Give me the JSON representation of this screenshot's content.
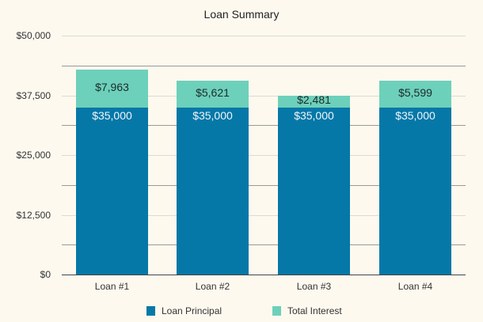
{
  "chart_data": {
    "type": "bar",
    "stacked": true,
    "title": "Loan Summary",
    "xlabel": "",
    "ylabel": "",
    "categories": [
      "Loan #1",
      "Loan #2",
      "Loan #3",
      "Loan #4"
    ],
    "series": [
      {
        "name": "Loan Principal",
        "color": "#0678a8",
        "values": [
          35000,
          35000,
          35000,
          35000
        ],
        "labels": [
          "$35,000",
          "$35,000",
          "$35,000",
          "$35,000"
        ]
      },
      {
        "name": "Total Interest",
        "color": "#6dd0bb",
        "values": [
          7963,
          5621,
          2481,
          5599
        ],
        "labels": [
          "$7,963",
          "$5,621",
          "$2,481",
          "$5,599"
        ]
      }
    ],
    "ylim": [
      0,
      50000
    ],
    "yticks": [
      "$0",
      "$12,500",
      "$25,000",
      "$37,500",
      "$50,000"
    ],
    "grid": true,
    "legend_position": "bottom"
  },
  "title": "Loan Summary",
  "legend": [
    {
      "label": "Loan Principal",
      "color": "#0678a8"
    },
    {
      "label": "Total Interest",
      "color": "#6dd0bb"
    }
  ]
}
